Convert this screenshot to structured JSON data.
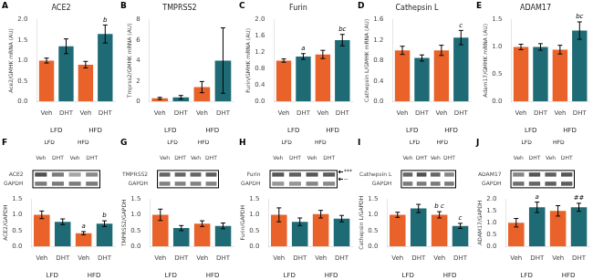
{
  "chart_data": [
    {
      "type": "bar",
      "panel": "A",
      "title": "ACE2",
      "ylabel": "Ace2/GMHK mRNA (AU)",
      "categories": [
        "Veh",
        "DHT",
        "Veh",
        "DHT"
      ],
      "groups": [
        "LFD",
        "HFD"
      ],
      "values": [
        1.0,
        1.35,
        0.9,
        1.65
      ],
      "errors": [
        0.06,
        0.18,
        0.08,
        0.22
      ],
      "colors": [
        "#E8622A",
        "#1F6B75",
        "#E8622A",
        "#1F6B75"
      ],
      "annotations": [
        null,
        null,
        null,
        "b"
      ],
      "ylim": [
        0.0,
        2.0
      ],
      "yticks": [
        {
          "value": 0.0,
          "label": "0.0"
        },
        0.5,
        {
          "value": 1.0,
          "label": "1.0"
        },
        1.5,
        {
          "value": 2.0,
          "label": "2.0"
        }
      ],
      "grid": false
    },
    {
      "type": "bar",
      "panel": "B",
      "title": "TMPRSS2",
      "ylabel": "Tmprss2/GMHK mRNA (AU)",
      "categories": [
        "Veh",
        "DHT",
        "Veh",
        "DHT"
      ],
      "groups": [
        "LFD",
        "HFD"
      ],
      "values": [
        0.3,
        0.4,
        1.4,
        4.0
      ],
      "errors": [
        0.1,
        0.18,
        0.55,
        3.2
      ],
      "colors": [
        "#E8622A",
        "#1F6B75",
        "#E8622A",
        "#1F6B75"
      ],
      "ylim": [
        0,
        8
      ],
      "yticks": [
        0,
        2,
        4,
        6,
        8
      ],
      "grid": false
    },
    {
      "type": "bar",
      "panel": "C",
      "title": "Furin",
      "ylabel": "Furin/GMHK mRNA (AU)",
      "categories": [
        "Veh",
        "DHT",
        "Veh",
        "DHT"
      ],
      "groups": [
        "LFD",
        "HFD"
      ],
      "values": [
        1.0,
        1.1,
        1.15,
        1.5
      ],
      "errors": [
        0.04,
        0.07,
        0.1,
        0.14
      ],
      "colors": [
        "#E8622A",
        "#1F6B75",
        "#E8622A",
        "#1F6B75"
      ],
      "annotations": [
        null,
        "a",
        null,
        "bc"
      ],
      "ylim": [
        0.0,
        2.0
      ],
      "yticks": [
        {
          "value": 0.0,
          "label": "0.0"
        },
        0.4,
        0.8,
        1.2,
        1.6,
        {
          "value": 2.0,
          "label": "2.0"
        }
      ],
      "grid": false
    },
    {
      "type": "bar",
      "panel": "D",
      "title": "Cathepsin L",
      "ylabel": "Cathepsin L/GMHK mRNA (AU)",
      "categories": [
        "Veh",
        "DHT",
        "Veh",
        "DHT"
      ],
      "groups": [
        "LFD",
        "HFD"
      ],
      "values": [
        1.0,
        0.85,
        1.0,
        1.25
      ],
      "errors": [
        0.08,
        0.06,
        0.1,
        0.14
      ],
      "colors": [
        "#E8622A",
        "#1F6B75",
        "#E8622A",
        "#1F6B75"
      ],
      "annotations": [
        null,
        null,
        null,
        "c"
      ],
      "ylim": [
        0.0,
        1.6
      ],
      "yticks": [
        {
          "value": 0.0,
          "label": "0.0"
        },
        0.4,
        0.8,
        1.2,
        1.6
      ],
      "grid": false
    },
    {
      "type": "bar",
      "panel": "E",
      "title": "ADAM17",
      "ylabel": "Adam17/GMHK mRNA (AU)",
      "categories": [
        "Veh",
        "DHT",
        "Veh",
        "DHT"
      ],
      "groups": [
        "LFD",
        "HFD"
      ],
      "values": [
        1.0,
        1.0,
        0.95,
        1.3
      ],
      "errors": [
        0.05,
        0.06,
        0.08,
        0.16
      ],
      "colors": [
        "#E8622A",
        "#1F6B75",
        "#E8622A",
        "#1F6B75"
      ],
      "annotations": [
        null,
        null,
        null,
        "bc"
      ],
      "ylim": [
        0.0,
        1.5
      ],
      "yticks": [
        {
          "value": 0.0,
          "label": "0.0"
        },
        0.5,
        {
          "value": 1.0,
          "label": "1.0"
        },
        1.5
      ],
      "grid": false
    },
    {
      "type": "heatmap",
      "panel": "F",
      "categories": [
        "Veh",
        "DHT",
        "Veh",
        "DHT"
      ],
      "groups": [
        "LFD",
        "HFD"
      ],
      "rows": [
        "ACE2",
        "GAPDH"
      ],
      "cells": [
        [
          0.75,
          0.55,
          0.35,
          0.48
        ],
        [
          0.55,
          0.55,
          0.55,
          0.55
        ]
      ],
      "grid": false
    },
    {
      "type": "bar",
      "ylabel": "ACE2/GAPDH",
      "categories": [
        "Veh",
        "DHT",
        "Veh",
        "DHT"
      ],
      "groups": [
        "LFD",
        "HFD"
      ],
      "values": [
        1.0,
        0.78,
        0.42,
        0.72
      ],
      "errors": [
        0.12,
        0.09,
        0.05,
        0.09
      ],
      "colors": [
        "#E8622A",
        "#1F6B75",
        "#E8622A",
        "#1F6B75"
      ],
      "annotations": [
        null,
        null,
        "a",
        "b"
      ],
      "ylim": [
        0.0,
        1.5
      ],
      "yticks": [
        {
          "value": 0.0,
          "label": "0.0"
        },
        0.5,
        {
          "value": 1.0,
          "label": "1.0"
        },
        1.5
      ],
      "grid": false
    },
    {
      "type": "heatmap",
      "panel": "G",
      "categories": [
        "Veh",
        "DHT",
        "Veh",
        "DHT"
      ],
      "groups": [
        "LFD",
        "HFD"
      ],
      "rows": [
        "TMPRSS2",
        "GAPDH"
      ],
      "cells": [
        [
          0.65,
          0.65,
          0.65,
          0.68
        ],
        [
          0.52,
          0.52,
          0.52,
          0.52
        ]
      ],
      "grid": false
    },
    {
      "type": "bar",
      "ylabel": "TMPRSS2/GAPDH",
      "categories": [
        "Veh",
        "DHT",
        "Veh",
        "DHT"
      ],
      "groups": [
        "LFD",
        "HFD"
      ],
      "values": [
        1.0,
        0.58,
        0.72,
        0.65
      ],
      "errors": [
        0.18,
        0.08,
        0.09,
        0.09
      ],
      "colors": [
        "#E8622A",
        "#1F6B75",
        "#E8622A",
        "#1F6B75"
      ],
      "ylim": [
        0.0,
        1.5
      ],
      "yticks": [
        {
          "value": 0.0,
          "label": "0.0"
        },
        0.5,
        {
          "value": 1.0,
          "label": "1.0"
        },
        1.5
      ],
      "grid": false
    },
    {
      "type": "heatmap",
      "panel": "H",
      "categories": [
        "Veh",
        "DHT",
        "Veh",
        "DHT"
      ],
      "groups": [
        "LFD",
        "HFD"
      ],
      "rows": [
        "Furin",
        "GAPDH"
      ],
      "cells": [
        [
          0.72,
          0.68,
          0.72,
          0.7
        ],
        [
          0.42,
          0.42,
          0.5,
          0.48
        ]
      ],
      "annotations": [
        "***",
        "--"
      ],
      "grid": false
    },
    {
      "type": "bar",
      "ylabel": "Furin/GAPDH",
      "categories": [
        "Veh",
        "DHT",
        "Veh",
        "DHT"
      ],
      "groups": [
        "LFD",
        "HFD"
      ],
      "values": [
        1.0,
        0.78,
        1.02,
        0.88
      ],
      "errors": [
        0.22,
        0.12,
        0.12,
        0.1
      ],
      "colors": [
        "#E8622A",
        "#1F6B75",
        "#E8622A",
        "#1F6B75"
      ],
      "ylim": [
        0.0,
        1.5
      ],
      "yticks": [
        {
          "value": 0.0,
          "label": "0.0"
        },
        0.5,
        {
          "value": 1.0,
          "label": "1.0"
        },
        1.5
      ],
      "grid": false
    },
    {
      "type": "heatmap",
      "panel": "I",
      "categories": [
        "Veh",
        "DHT",
        "Veh",
        "DHT"
      ],
      "groups": [
        "LFD",
        "HFD"
      ],
      "rows": [
        "Cathepsin L",
        "GAPDH"
      ],
      "cells": [
        [
          0.65,
          0.75,
          0.65,
          0.5
        ],
        [
          0.55,
          0.55,
          0.55,
          0.55
        ]
      ],
      "grid": false
    },
    {
      "type": "bar",
      "ylabel": "Cathepsin L/GAPDH",
      "categories": [
        "Veh",
        "DHT",
        "Veh",
        "DHT"
      ],
      "groups": [
        "LFD",
        "HFD"
      ],
      "values": [
        1.0,
        1.2,
        1.0,
        0.65
      ],
      "errors": [
        0.08,
        0.13,
        0.1,
        0.08
      ],
      "colors": [
        "#E8622A",
        "#1F6B75",
        "#E8622A",
        "#1F6B75"
      ],
      "annotations": [
        null,
        null,
        "b c",
        "c"
      ],
      "ylim": [
        0.0,
        1.5
      ],
      "yticks": [
        {
          "value": 0.0,
          "label": "0.0"
        },
        0.5,
        {
          "value": 1.0,
          "label": "1.0"
        },
        1.5
      ],
      "grid": false
    },
    {
      "type": "heatmap",
      "panel": "J",
      "categories": [
        "Veh",
        "DHT",
        "Veh",
        "DHT"
      ],
      "groups": [
        "LFD",
        "HFD"
      ],
      "rows": [
        "ADAM17",
        "GAPDH"
      ],
      "cells": [
        [
          0.5,
          0.72,
          0.68,
          0.72
        ],
        [
          0.6,
          0.65,
          0.68,
          0.68
        ]
      ],
      "grid": false
    },
    {
      "type": "bar",
      "ylabel": "ADAM17/GAPDH",
      "categories": [
        "Veh",
        "DHT",
        "Veh",
        "DHT"
      ],
      "groups": [
        "LFD",
        "HFD"
      ],
      "values": [
        1.0,
        1.65,
        1.5,
        1.65
      ],
      "errors": [
        0.18,
        0.22,
        0.22,
        0.17
      ],
      "colors": [
        "#E8622A",
        "#1F6B75",
        "#E8622A",
        "#1F6B75"
      ],
      "annotations": [
        null,
        "a",
        null,
        "##"
      ],
      "ylim": [
        0.0,
        2.0
      ],
      "yticks": [
        {
          "value": 0.0,
          "label": "0.0"
        },
        0.5,
        {
          "value": 1.0,
          "label": "1.0"
        },
        1.5,
        {
          "value": 2.0,
          "label": "2.0"
        }
      ],
      "grid": false
    }
  ]
}
